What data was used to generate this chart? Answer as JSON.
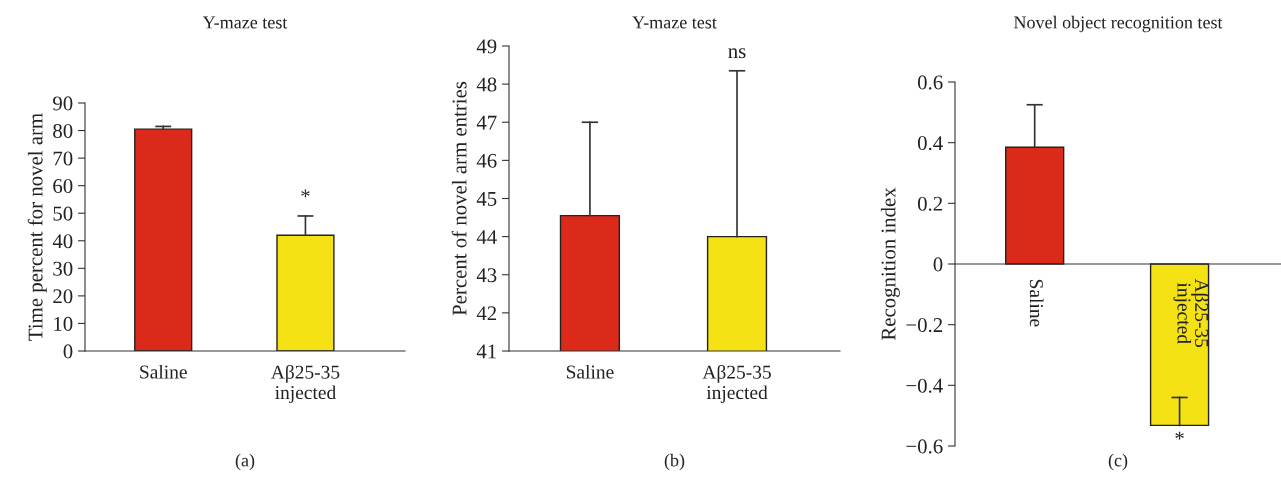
{
  "chart_data": [
    {
      "type": "bar",
      "title": "Y-maze test",
      "ylabel": "Time percent for novel arm",
      "categories": [
        "Saline",
        "Aβ25-35\ninjected"
      ],
      "values": [
        80.5,
        42
      ],
      "colors": [
        "#db2a1a",
        "#f4e215"
      ],
      "errors": [
        [
          80.5,
          81.5
        ],
        [
          42,
          49
        ]
      ],
      "ylim": [
        0,
        90
      ],
      "yticks": [
        0,
        10,
        20,
        30,
        40,
        50,
        60,
        70,
        80,
        90
      ],
      "grid": false,
      "legend": false,
      "annotations": [
        "*",
        "(a)"
      ]
    },
    {
      "type": "bar",
      "title": "Y-maze test",
      "ylabel": "Percent of novel arm entries",
      "categories": [
        "Saline",
        "Aβ25-35\ninjected"
      ],
      "values": [
        44.55,
        44.0
      ],
      "colors": [
        "#db2a1a",
        "#f4e215"
      ],
      "errors": [
        [
          44.55,
          47.0
        ],
        [
          44.0,
          48.35
        ]
      ],
      "ylim": [
        41,
        49
      ],
      "yticks": [
        41,
        42,
        43,
        44,
        45,
        46,
        47,
        48,
        49
      ],
      "grid": false,
      "legend": false,
      "annotations": [
        "ns",
        "(b)"
      ]
    },
    {
      "type": "bar",
      "title": "Novel object recognition test",
      "ylabel": "Recognition index",
      "categories": [
        "Saline",
        "Aβ25-35\ninjected"
      ],
      "values": [
        0.385,
        -0.532
      ],
      "colors": [
        "#db2a1a",
        "#f4e215"
      ],
      "errors": [
        [
          0.385,
          0.525
        ],
        [
          -0.532,
          -0.44
        ]
      ],
      "ylim": [
        -0.6,
        0.6
      ],
      "yticks": [
        {
          "value": -0.6,
          "label": "−0.6"
        },
        {
          "value": -0.4,
          "label": "−0.4"
        },
        {
          "value": -0.2,
          "label": "−0.2"
        },
        0,
        0.2,
        0.4,
        0.6
      ],
      "grid": false,
      "legend": false,
      "annotations": [
        "*",
        "(c)"
      ]
    }
  ]
}
